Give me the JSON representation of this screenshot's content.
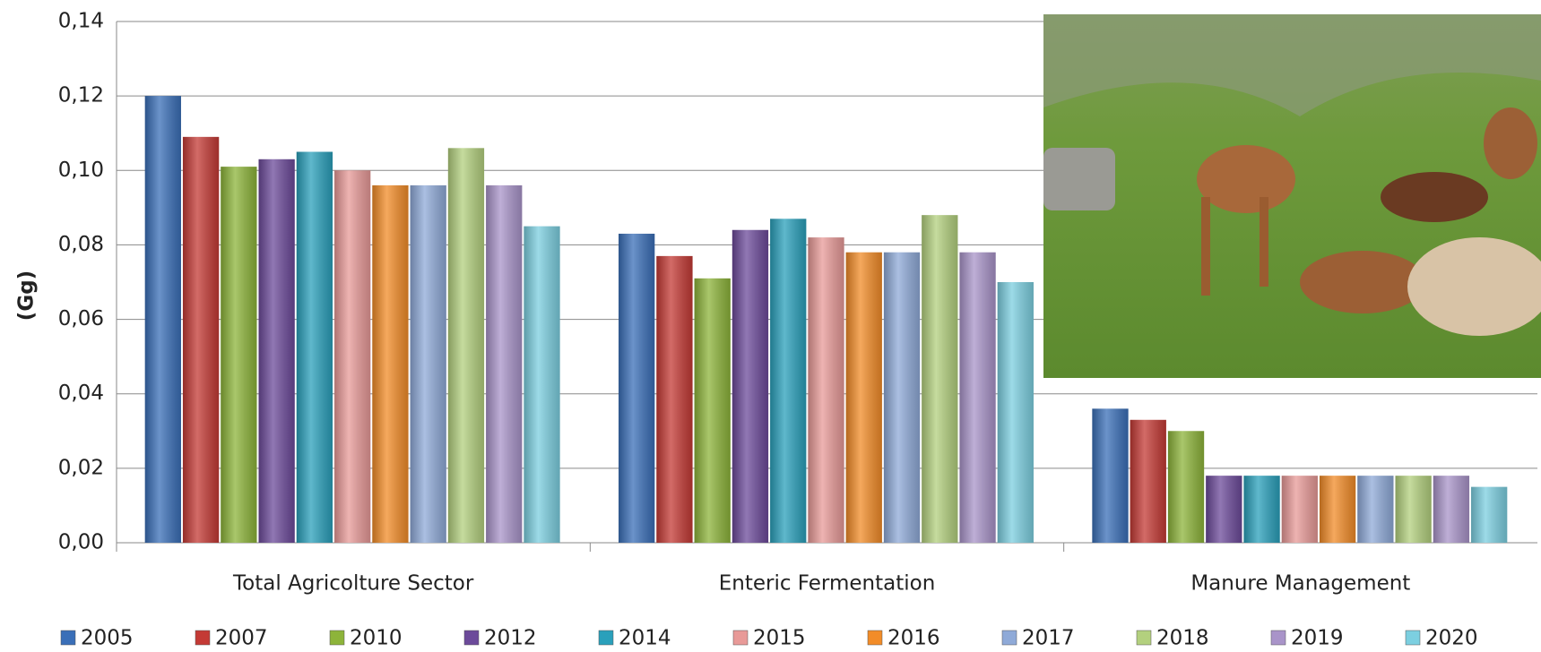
{
  "chart_data": {
    "type": "bar",
    "y_label": "(Gg)",
    "categories": [
      "Total Agricolture Sector",
      "Enteric Fermentation",
      "Manure Management"
    ],
    "ylim": [
      0,
      0.14
    ],
    "yticks": [
      {
        "value": 0,
        "label": "0,00"
      },
      {
        "value": 0.02,
        "label": "0,02"
      },
      {
        "value": 0.04,
        "label": "0,04"
      },
      {
        "value": 0.06,
        "label": "0,06"
      },
      {
        "value": 0.08,
        "label": "0,08"
      },
      {
        "value": 0.1,
        "label": "0,10"
      },
      {
        "value": 0.12,
        "label": "0,12"
      },
      {
        "value": 0.14,
        "label": "0,14"
      }
    ],
    "grid": true,
    "series": [
      {
        "name": "2005",
        "color": "#3a6fb8",
        "values": [
          0.12,
          0.083,
          0.036
        ]
      },
      {
        "name": "2007",
        "color": "#c43a35",
        "values": [
          0.109,
          0.077,
          0.033
        ]
      },
      {
        "name": "2010",
        "color": "#8db43a",
        "values": [
          0.101,
          0.071,
          0.03
        ]
      },
      {
        "name": "2012",
        "color": "#6c4a9a",
        "values": [
          0.103,
          0.084,
          0.018
        ]
      },
      {
        "name": "2014",
        "color": "#2aa0bb",
        "values": [
          0.105,
          0.087,
          0.018
        ]
      },
      {
        "name": "2015",
        "color": "#e89a98",
        "values": [
          0.1,
          0.082,
          0.018
        ]
      },
      {
        "name": "2016",
        "color": "#f28c28",
        "values": [
          0.096,
          0.078,
          0.018
        ]
      },
      {
        "name": "2017",
        "color": "#8faad8",
        "values": [
          0.096,
          0.078,
          0.018
        ]
      },
      {
        "name": "2018",
        "color": "#b3d07e",
        "values": [
          0.106,
          0.088,
          0.018
        ]
      },
      {
        "name": "2019",
        "color": "#a994c9",
        "values": [
          0.096,
          0.078,
          0.018
        ]
      },
      {
        "name": "2020",
        "color": "#7ccfe0",
        "values": [
          0.085,
          0.07,
          0.015
        ]
      }
    ]
  }
}
